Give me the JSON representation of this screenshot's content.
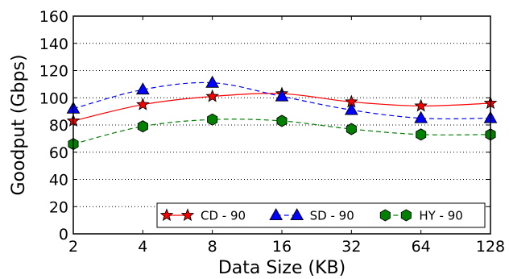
{
  "chart_data": {
    "type": "line",
    "title": "",
    "xlabel": "Data Size (KB)",
    "ylabel": "Goodput (Gbps)",
    "categories": [
      "2",
      "4",
      "8",
      "16",
      "32",
      "64",
      "128"
    ],
    "ylim": [
      0,
      160
    ],
    "yticks": [
      0,
      20,
      40,
      60,
      80,
      100,
      120,
      140,
      160
    ],
    "grid": "horizontal dotted",
    "legend_position": "bottom-right",
    "series": [
      {
        "name": "CD - 90",
        "values": [
          83,
          95,
          101,
          103,
          97,
          94,
          96
        ],
        "color": "#ff0000",
        "marker": "star",
        "marker_color": "#ff0000",
        "line": "solid"
      },
      {
        "name": "SD - 90",
        "values": [
          92,
          106,
          111,
          101,
          91,
          85,
          85
        ],
        "color": "#0000ff",
        "marker": "triangle",
        "marker_color": "#0000ff",
        "line": "dashed"
      },
      {
        "name": "HY - 90",
        "values": [
          66,
          79,
          84,
          83,
          77,
          73,
          73
        ],
        "color": "#008000",
        "marker": "hexagon",
        "marker_color": "#008000",
        "line": "dashed"
      }
    ]
  }
}
